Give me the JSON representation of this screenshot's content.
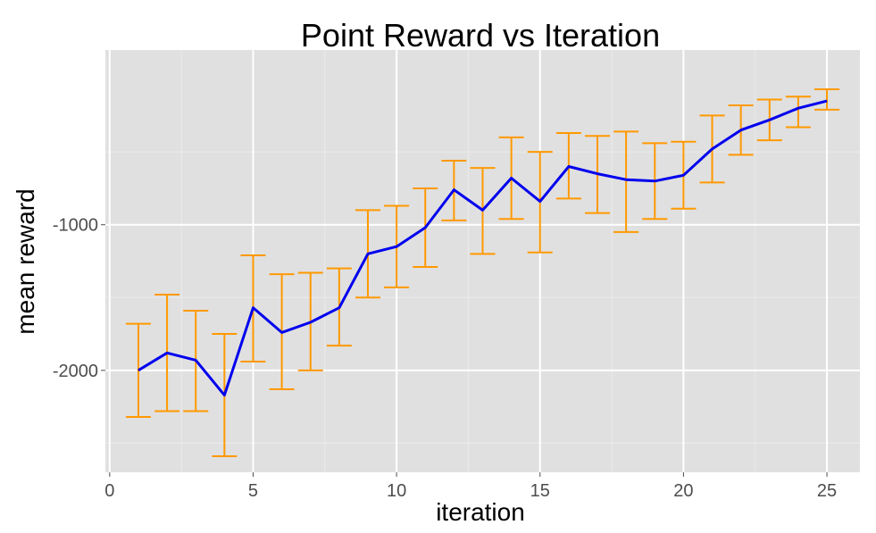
{
  "chart_data": {
    "type": "line",
    "title": "Point Reward vs Iteration",
    "xlabel": "iteration",
    "ylabel": "mean reward",
    "xlim": [
      -0.15,
      26.15
    ],
    "ylim": [
      -2700,
      200
    ],
    "x_ticks": [
      0,
      5,
      10,
      15,
      20,
      25
    ],
    "x_tick_labels": [
      "0",
      "5",
      "10",
      "15",
      "20",
      "25"
    ],
    "y_ticks": [
      -1000,
      -2000
    ],
    "y_tick_labels": [
      "-1000",
      "-2000"
    ],
    "grid": true,
    "series": [
      {
        "line_color": "#0000ee",
        "errorbar_color": "#ff9900",
        "x": [
          1,
          2,
          3,
          4,
          5,
          6,
          7,
          8,
          9,
          10,
          11,
          12,
          13,
          14,
          15,
          16,
          17,
          18,
          19,
          20,
          21,
          22,
          23,
          24,
          25
        ],
        "y": [
          -2000,
          -1880,
          -1930,
          -2170,
          -1570,
          -1740,
          -1670,
          -1570,
          -1200,
          -1150,
          -1020,
          -760,
          -900,
          -680,
          -840,
          -600,
          -650,
          -690,
          -700,
          -660,
          -480,
          -350,
          -280,
          -200,
          -150
        ],
        "ymin": [
          -2320,
          -2280,
          -2280,
          -2590,
          -1940,
          -2130,
          -2000,
          -1830,
          -1500,
          -1430,
          -1290,
          -970,
          -1200,
          -960,
          -1190,
          -820,
          -920,
          -1050,
          -960,
          -890,
          -710,
          -520,
          -420,
          -330,
          -210
        ],
        "ymax": [
          -1680,
          -1480,
          -1590,
          -1750,
          -1210,
          -1340,
          -1330,
          -1300,
          -900,
          -870,
          -750,
          -560,
          -610,
          -400,
          -500,
          -370,
          -390,
          -360,
          -440,
          -430,
          -250,
          -180,
          -140,
          -120,
          -70
        ]
      }
    ]
  }
}
